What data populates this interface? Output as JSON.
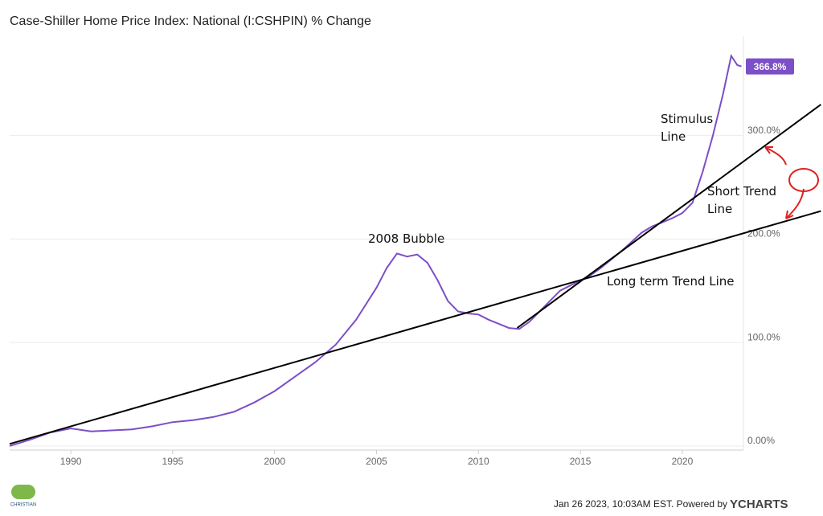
{
  "chart_data": {
    "type": "line",
    "title": "Case-Shiller Home Price Index: National (I:CSHPIN) % Change",
    "x": [
      1987.0,
      1988,
      1989,
      1990,
      1991,
      1992,
      1993,
      1994,
      1995,
      1996,
      1997,
      1998,
      1999,
      2000,
      2001,
      2002,
      2003,
      2004,
      2005,
      2005.5,
      2006,
      2006.5,
      2007,
      2007.5,
      2008,
      2008.5,
      2009,
      2009.5,
      2010,
      2010.5,
      2011,
      2011.5,
      2012,
      2012.5,
      2013,
      2013.5,
      2014,
      2014.5,
      2015,
      2015.5,
      2016,
      2016.5,
      2017,
      2017.5,
      2018,
      2018.5,
      2019,
      2019.5,
      2020,
      2020.5,
      2021,
      2021.5,
      2022,
      2022.4,
      2022.7,
      2022.9
    ],
    "values": [
      0,
      6,
      13,
      17,
      14,
      15,
      16,
      19,
      23,
      25,
      28,
      33,
      42,
      53,
      67,
      81,
      98,
      122,
      153,
      172,
      186,
      183,
      185,
      177,
      160,
      140,
      130,
      128,
      127,
      122,
      118,
      114,
      113,
      120,
      130,
      140,
      150,
      155,
      160,
      165,
      172,
      180,
      188,
      197,
      206,
      212,
      216,
      220,
      225,
      235,
      265,
      300,
      340,
      377,
      368,
      366.8
    ],
    "value_labels": [
      null,
      null,
      null,
      null,
      null,
      null,
      null,
      null,
      null,
      null,
      null,
      null,
      null,
      null,
      null,
      null,
      null,
      null,
      null,
      null,
      null,
      null,
      null,
      null,
      null,
      null,
      null,
      null,
      null,
      null,
      null,
      null,
      null,
      null,
      null,
      null,
      null,
      null,
      null,
      null,
      null,
      null,
      null,
      null,
      null,
      null,
      null,
      null,
      null,
      null,
      null,
      null,
      null,
      null,
      null,
      "366.8%"
    ],
    "color": "#7b4fc7",
    "xlim": [
      1987,
      2023
    ],
    "xticks": [
      1990,
      1995,
      2000,
      2005,
      2010,
      2015,
      2020
    ],
    "ylim": [
      -4,
      396
    ],
    "yticks": [
      {
        "value": 0,
        "label": "0.00%"
      },
      {
        "value": 100,
        "label": "100.0%"
      },
      {
        "value": 200,
        "label": "200.0%"
      },
      {
        "value": 300,
        "label": "300.0%"
      }
    ],
    "grid": true,
    "trend_lines": [
      {
        "name": "Long term Trend Line",
        "color": "#000000",
        "x": [
          1987,
          2026.8
        ],
        "values": [
          2,
          227
        ]
      },
      {
        "name": "Short Trend Line",
        "color": "#000000",
        "x": [
          2011.9,
          2026.8
        ],
        "values": [
          114,
          330
        ]
      }
    ],
    "annotations": [
      "2008 Bubble",
      "Stimulus Line"
    ],
    "footer": "Jan 26 2023, 10:03AM EST. Powered by",
    "brand": "YCHARTS",
    "logo_text": "CHRISTIAN"
  }
}
